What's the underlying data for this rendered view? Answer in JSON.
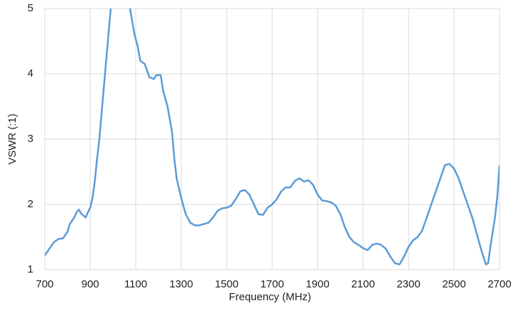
{
  "chart_data": {
    "type": "line",
    "x_label": "Frequency (MHz)",
    "y_label": "VSWR  (:1)",
    "x": [
      700,
      720,
      740,
      760,
      780,
      800,
      810,
      820,
      830,
      840,
      850,
      860,
      870,
      880,
      890,
      900,
      910,
      920,
      930,
      940,
      950,
      960,
      970,
      980,
      990,
      1000,
      1030,
      1060,
      1075,
      1085,
      1095,
      1110,
      1120,
      1140,
      1160,
      1180,
      1190,
      1210,
      1220,
      1240,
      1260,
      1270,
      1280,
      1300,
      1320,
      1340,
      1360,
      1380,
      1400,
      1420,
      1440,
      1460,
      1480,
      1500,
      1520,
      1540,
      1560,
      1580,
      1600,
      1620,
      1640,
      1660,
      1680,
      1700,
      1720,
      1740,
      1760,
      1780,
      1800,
      1820,
      1840,
      1860,
      1880,
      1900,
      1920,
      1940,
      1960,
      1980,
      2000,
      2020,
      2040,
      2060,
      2080,
      2100,
      2120,
      2140,
      2160,
      2180,
      2200,
      2220,
      2240,
      2260,
      2280,
      2300,
      2320,
      2340,
      2360,
      2380,
      2400,
      2420,
      2440,
      2460,
      2480,
      2500,
      2520,
      2540,
      2560,
      2580,
      2600,
      2620,
      2640,
      2650,
      2660,
      2680,
      2690,
      2700
    ],
    "series": [
      {
        "name": "VSWR",
        "color": "#5b9bd5",
        "values": [
          1.22,
          1.32,
          1.42,
          1.47,
          1.48,
          1.58,
          1.7,
          1.75,
          1.8,
          1.88,
          1.92,
          1.86,
          1.83,
          1.8,
          1.88,
          1.95,
          2.1,
          2.35,
          2.7,
          3.0,
          3.4,
          3.8,
          4.2,
          4.6,
          5.0,
          5.3,
          5.6,
          5.3,
          5.0,
          4.8,
          4.6,
          4.4,
          4.2,
          4.15,
          3.95,
          3.92,
          3.98,
          3.98,
          3.75,
          3.5,
          3.1,
          2.7,
          2.4,
          2.1,
          1.85,
          1.72,
          1.68,
          1.68,
          1.7,
          1.72,
          1.8,
          1.9,
          1.94,
          1.95,
          1.98,
          2.08,
          2.2,
          2.22,
          2.15,
          2.0,
          1.85,
          1.84,
          1.95,
          2.0,
          2.08,
          2.2,
          2.26,
          2.26,
          2.36,
          2.4,
          2.35,
          2.37,
          2.3,
          2.15,
          2.06,
          2.05,
          2.03,
          1.98,
          1.85,
          1.65,
          1.5,
          1.42,
          1.38,
          1.33,
          1.3,
          1.38,
          1.4,
          1.38,
          1.32,
          1.2,
          1.1,
          1.08,
          1.2,
          1.35,
          1.45,
          1.5,
          1.6,
          1.8,
          2.0,
          2.2,
          2.4,
          2.6,
          2.62,
          2.55,
          2.4,
          2.2,
          2.0,
          1.8,
          1.55,
          1.3,
          1.08,
          1.1,
          1.35,
          1.8,
          2.1,
          2.6
        ]
      }
    ],
    "xlim": [
      700,
      2700
    ],
    "xticks": [
      700,
      900,
      1100,
      1300,
      1500,
      1700,
      1900,
      2100,
      2300,
      2500,
      2700
    ],
    "ylim": [
      1,
      5
    ],
    "yticks": [
      1,
      2,
      3,
      4,
      5
    ],
    "grid": true
  }
}
